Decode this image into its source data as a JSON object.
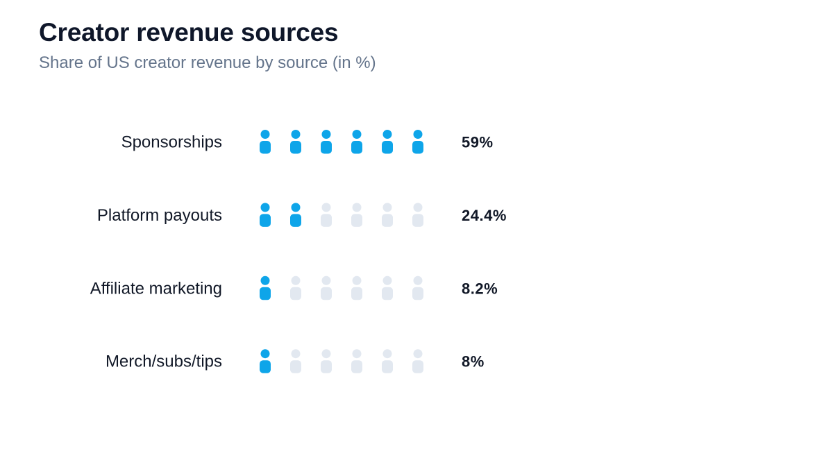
{
  "chart_data": {
    "type": "bar",
    "title": "Creator revenue sources",
    "subtitle": "Share of US creator revenue by source (in %)",
    "categories": [
      "Sponsorships",
      "Platform payouts",
      "Affiliate marketing",
      "Merch/subs/tips"
    ],
    "values": [
      59,
      24.4,
      8.2,
      8
    ],
    "value_labels": [
      "59%",
      "24.4%",
      "8.2%",
      "8%"
    ],
    "icons_per_row": 6,
    "filled_icons": [
      6,
      2,
      1,
      1
    ],
    "icon": "person-icon",
    "colors": {
      "filled": "#0ea5e9",
      "empty": "#e2e8f0"
    }
  }
}
